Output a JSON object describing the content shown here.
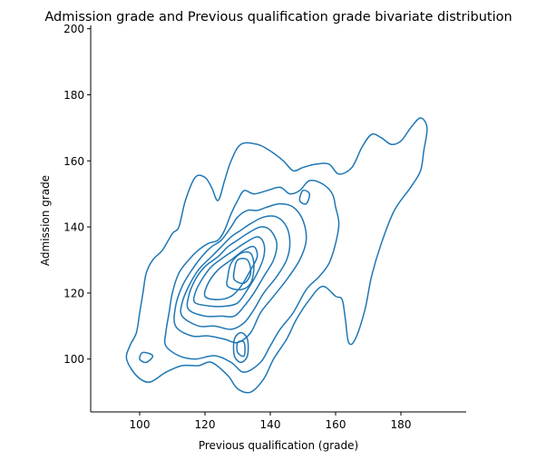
{
  "chart_data": {
    "type": "contour",
    "title": "Admission grade and Previous qualification grade bivariate distribution",
    "xlabel": "Previous qualification (grade)",
    "ylabel": "Admission grade",
    "xlim": [
      85,
      200
    ],
    "ylim": [
      84,
      201
    ],
    "xticks": [
      100,
      120,
      140,
      160,
      180
    ],
    "yticks": [
      100,
      120,
      140,
      160,
      180,
      200
    ],
    "grid": false,
    "line_color": "#1f77b4",
    "contours": [
      {
        "level": 1,
        "points": [
          [
            96,
            100
          ],
          [
            99,
            95
          ],
          [
            103,
            93
          ],
          [
            108,
            96
          ],
          [
            113,
            98
          ],
          [
            118,
            98
          ],
          [
            122,
            99
          ],
          [
            127,
            95
          ],
          [
            130,
            91
          ],
          [
            134,
            90
          ],
          [
            138,
            94
          ],
          [
            141,
            100
          ],
          [
            145,
            106
          ],
          [
            148,
            112
          ],
          [
            152,
            118
          ],
          [
            156,
            122
          ],
          [
            160,
            119
          ],
          [
            162,
            118
          ],
          [
            163,
            112
          ],
          [
            164,
            105
          ],
          [
            166,
            106
          ],
          [
            169,
            115
          ],
          [
            171,
            125
          ],
          [
            174,
            135
          ],
          [
            178,
            145
          ],
          [
            183,
            152
          ],
          [
            186,
            157
          ],
          [
            187,
            163
          ],
          [
            188,
            170
          ],
          [
            186,
            173
          ],
          [
            183,
            170
          ],
          [
            180,
            166
          ],
          [
            177,
            165
          ],
          [
            174,
            167
          ],
          [
            171,
            168
          ],
          [
            168,
            164
          ],
          [
            165,
            158
          ],
          [
            161,
            156
          ],
          [
            158,
            159
          ],
          [
            154,
            159
          ],
          [
            150,
            158
          ],
          [
            147,
            157
          ],
          [
            144,
            160
          ],
          [
            140,
            163
          ],
          [
            136,
            165
          ],
          [
            131,
            165
          ],
          [
            128,
            160
          ],
          [
            126,
            154
          ],
          [
            124,
            148
          ],
          [
            122,
            152
          ],
          [
            120,
            155
          ],
          [
            117,
            155
          ],
          [
            114,
            148
          ],
          [
            112,
            140
          ],
          [
            110,
            138
          ],
          [
            107,
            133
          ],
          [
            104,
            130
          ],
          [
            102,
            126
          ],
          [
            101,
            120
          ],
          [
            100,
            114
          ],
          [
            99,
            108
          ],
          [
            97,
            104
          ]
        ]
      },
      {
        "level": 2,
        "points": [
          [
            108,
            104
          ],
          [
            112,
            101
          ],
          [
            117,
            100
          ],
          [
            123,
            101
          ],
          [
            128,
            99
          ],
          [
            132,
            96
          ],
          [
            137,
            99
          ],
          [
            140,
            104
          ],
          [
            143,
            109
          ],
          [
            147,
            114
          ],
          [
            151,
            121
          ],
          [
            155,
            125
          ],
          [
            158,
            129
          ],
          [
            160,
            135
          ],
          [
            161,
            141
          ],
          [
            160,
            146
          ],
          [
            159,
            150
          ],
          [
            156,
            153
          ],
          [
            152,
            154
          ],
          [
            149,
            151
          ],
          [
            146,
            150
          ],
          [
            143,
            152
          ],
          [
            139,
            151
          ],
          [
            135,
            150
          ],
          [
            132,
            151
          ],
          [
            130,
            148
          ],
          [
            128,
            144
          ],
          [
            126,
            139
          ],
          [
            124,
            136
          ],
          [
            121,
            135
          ],
          [
            118,
            133
          ],
          [
            115,
            130
          ],
          [
            112,
            126
          ],
          [
            110,
            120
          ],
          [
            109,
            114
          ],
          [
            108,
            108
          ]
        ]
      },
      {
        "level": 3,
        "points": [
          [
            111,
            110
          ],
          [
            116,
            107
          ],
          [
            121,
            107
          ],
          [
            126,
            106
          ],
          [
            130,
            105
          ],
          [
            134,
            108
          ],
          [
            137,
            114
          ],
          [
            141,
            119
          ],
          [
            145,
            124
          ],
          [
            149,
            130
          ],
          [
            151,
            136
          ],
          [
            150,
            142
          ],
          [
            147,
            146
          ],
          [
            143,
            147
          ],
          [
            139,
            146
          ],
          [
            136,
            145
          ],
          [
            133,
            145
          ],
          [
            130,
            143
          ],
          [
            128,
            140
          ],
          [
            125,
            136
          ],
          [
            122,
            134
          ],
          [
            119,
            131
          ],
          [
            116,
            127
          ],
          [
            113,
            122
          ],
          [
            111,
            116
          ]
        ]
      },
      {
        "level": 4,
        "points": [
          [
            113,
            113
          ],
          [
            118,
            110
          ],
          [
            123,
            110
          ],
          [
            128,
            109
          ],
          [
            132,
            111
          ],
          [
            135,
            115
          ],
          [
            138,
            120
          ],
          [
            142,
            125
          ],
          [
            145,
            130
          ],
          [
            146,
            135
          ],
          [
            145,
            140
          ],
          [
            142,
            143
          ],
          [
            138,
            143
          ],
          [
            134,
            141
          ],
          [
            131,
            139
          ],
          [
            128,
            137
          ],
          [
            125,
            134
          ],
          [
            122,
            131
          ],
          [
            118,
            127
          ],
          [
            115,
            122
          ],
          [
            113,
            117
          ]
        ]
      },
      {
        "level": 5,
        "points": [
          [
            115,
            115
          ],
          [
            120,
            113
          ],
          [
            125,
            113
          ],
          [
            129,
            113
          ],
          [
            132,
            116
          ],
          [
            135,
            120
          ],
          [
            138,
            125
          ],
          [
            141,
            130
          ],
          [
            142,
            135
          ],
          [
            140,
            139
          ],
          [
            137,
            140
          ],
          [
            133,
            138
          ],
          [
            130,
            136
          ],
          [
            127,
            134
          ],
          [
            124,
            131
          ],
          [
            120,
            128
          ],
          [
            117,
            124
          ],
          [
            115,
            119
          ]
        ]
      },
      {
        "level": 6,
        "points": [
          [
            117,
            117
          ],
          [
            122,
            116
          ],
          [
            126,
            116
          ],
          [
            130,
            117
          ],
          [
            133,
            121
          ],
          [
            136,
            126
          ],
          [
            138,
            131
          ],
          [
            138,
            135
          ],
          [
            136,
            137
          ],
          [
            132,
            135
          ],
          [
            129,
            133
          ],
          [
            126,
            131
          ],
          [
            122,
            128
          ],
          [
            119,
            124
          ],
          [
            117,
            120
          ]
        ]
      },
      {
        "level": 7,
        "points": [
          [
            120,
            119
          ],
          [
            124,
            118
          ],
          [
            128,
            119
          ],
          [
            131,
            122
          ],
          [
            134,
            127
          ],
          [
            136,
            131
          ],
          [
            135,
            134
          ],
          [
            132,
            133
          ],
          [
            128,
            130
          ],
          [
            124,
            127
          ],
          [
            121,
            123
          ]
        ]
      },
      {
        "level": 8,
        "points": [
          [
            127,
            122
          ],
          [
            131,
            121
          ],
          [
            134,
            123
          ],
          [
            135,
            128
          ],
          [
            134,
            132
          ],
          [
            131,
            132
          ],
          [
            128,
            129
          ],
          [
            127,
            125
          ]
        ]
      },
      {
        "level": 9,
        "points": [
          [
            129,
            124
          ],
          [
            132,
            123
          ],
          [
            134,
            126
          ],
          [
            133,
            130
          ],
          [
            130,
            130
          ],
          [
            129,
            127
          ]
        ]
      },
      {
        "level": 2,
        "points": [
          [
            129,
            101
          ],
          [
            131,
            99
          ],
          [
            133,
            101
          ],
          [
            133,
            106
          ],
          [
            131,
            108
          ],
          [
            129,
            106
          ]
        ]
      },
      {
        "level": 3,
        "points": [
          [
            130,
            102
          ],
          [
            132,
            101
          ],
          [
            132,
            105
          ],
          [
            130,
            105
          ]
        ]
      },
      {
        "level": 2,
        "points": [
          [
            100,
            100
          ],
          [
            102,
            99
          ],
          [
            104,
            101
          ],
          [
            101,
            102
          ]
        ]
      },
      {
        "level": 2,
        "points": [
          [
            149,
            148
          ],
          [
            151,
            147
          ],
          [
            152,
            150
          ],
          [
            150,
            151
          ]
        ]
      }
    ]
  }
}
